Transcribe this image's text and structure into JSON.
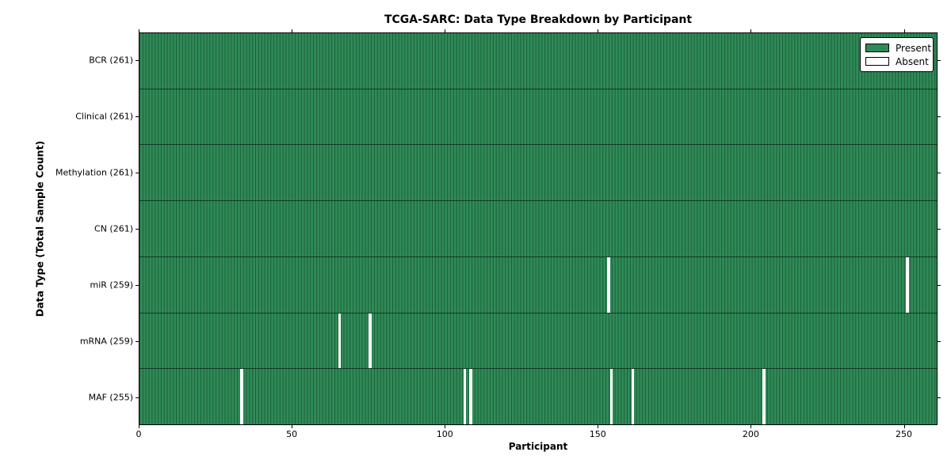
{
  "figure": {
    "title": "TCGA-SARC: Data Type Breakdown by Participant",
    "xlabel": "Participant",
    "ylabel": "Data Type (Total Sample Count)"
  },
  "chart_data": {
    "type": "heatmap",
    "title": "TCGA-SARC: Data Type Breakdown by Participant",
    "xlabel": "Participant",
    "ylabel": "Data Type (Total Sample Count)",
    "n_participants": 261,
    "xlim": [
      0,
      261
    ],
    "x_ticks": [
      0,
      50,
      100,
      150,
      200,
      250
    ],
    "grid": false,
    "legend_position": "upper right",
    "rows": [
      {
        "data_type": "BCR",
        "label": "BCR (261)",
        "present_count": 261,
        "absent_participants": []
      },
      {
        "data_type": "Clinical",
        "label": "Clinical (261)",
        "present_count": 261,
        "absent_participants": []
      },
      {
        "data_type": "Methylation",
        "label": "Methylation (261)",
        "present_count": 261,
        "absent_participants": []
      },
      {
        "data_type": "CN",
        "label": "CN (261)",
        "present_count": 261,
        "absent_participants": []
      },
      {
        "data_type": "miR",
        "label": "miR (259)",
        "present_count": 259,
        "absent_participants": [
          153,
          251
        ]
      },
      {
        "data_type": "mRNA",
        "label": "mRNA (259)",
        "present_count": 259,
        "absent_participants": [
          65,
          75
        ]
      },
      {
        "data_type": "MAF",
        "label": "MAF (255)",
        "present_count": 255,
        "absent_participants": [
          33,
          106,
          108,
          154,
          161,
          204
        ]
      }
    ],
    "legend": [
      {
        "label": "Present",
        "color": "#2e8b57"
      },
      {
        "label": "Absent",
        "color": "#ffffff"
      }
    ],
    "colors": {
      "present": "#2e8b57",
      "absent": "#ffffff"
    }
  }
}
